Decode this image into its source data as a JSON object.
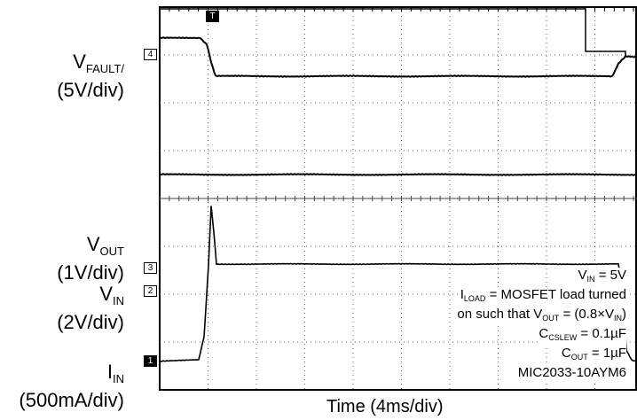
{
  "chart_data": {
    "type": "line",
    "xlabel": "Time (4ms/div)",
    "channels": [
      {
        "label_main": "V",
        "label_sub": "FAULT/",
        "label_scale": "(5V/div)",
        "marker": "4"
      },
      {
        "label_main": "V",
        "label_sub": "OUT",
        "label_scale": "(1V/div)",
        "marker": "3"
      },
      {
        "label_main": "V",
        "label_sub": "IN",
        "label_scale": "(2V/div)",
        "marker": "2"
      },
      {
        "label_main": "I",
        "label_sub": "IN",
        "label_scale": "(500mA/div)",
        "marker": "1"
      }
    ],
    "trigger_marker": "T",
    "annotations": [
      {
        "pre": "V",
        "sub": "IN",
        "post": " = 5V"
      },
      {
        "pre": "I",
        "sub": "LOAD",
        "post": " = MOSFET load turned"
      },
      {
        "pre": "on such that V",
        "sub": "OUT",
        "post": " = (0.8×V",
        "sub2": "IN",
        "post2": ")"
      },
      {
        "pre": "C",
        "sub": "CSLEW",
        "post": " = 0.1µF"
      },
      {
        "pre": "C",
        "sub": "OUT",
        "post": " = 1µF"
      },
      {
        "pre": "MIC2033-10AYM6",
        "sub": "",
        "post": ""
      }
    ]
  }
}
